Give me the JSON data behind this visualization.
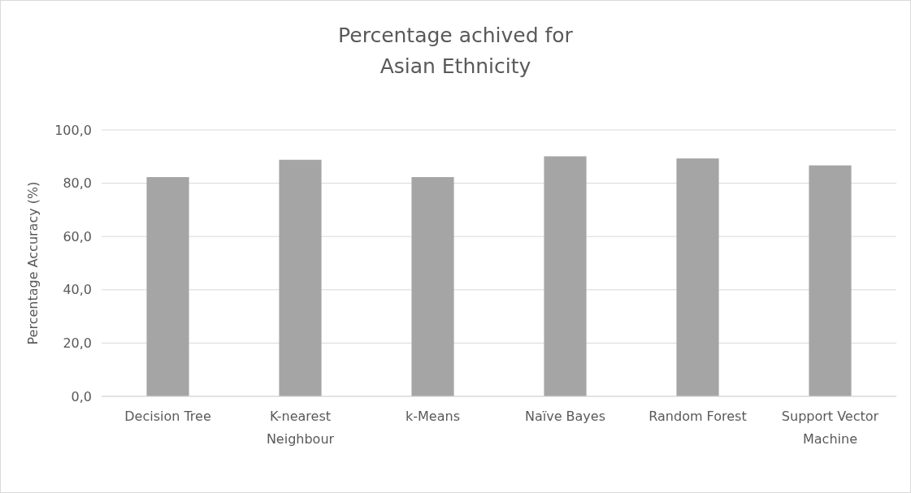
{
  "chart_data": {
    "type": "bar",
    "title": "Percentage achived for\nAsian Ethnicity",
    "ylabel": "Percentage Accuracy (%)",
    "categories": [
      "Decision Tree",
      "K-nearest Neighbour",
      "k-Means",
      "Naïve Bayes",
      "Random Forest",
      "Support Vector Machine"
    ],
    "values": [
      82.3,
      88.8,
      82.3,
      90.1,
      89.3,
      86.7
    ],
    "color": "#a5a5a5",
    "ylim": [
      0,
      100
    ],
    "yticks": [
      {
        "value": 0,
        "label": "0,0"
      },
      {
        "value": 20,
        "label": "20,0"
      },
      {
        "value": 40,
        "label": "40,0"
      },
      {
        "value": 60,
        "label": "60,0"
      },
      {
        "value": 80,
        "label": "80,0"
      },
      {
        "value": 100,
        "label": "100,0"
      }
    ],
    "grid": "y"
  }
}
